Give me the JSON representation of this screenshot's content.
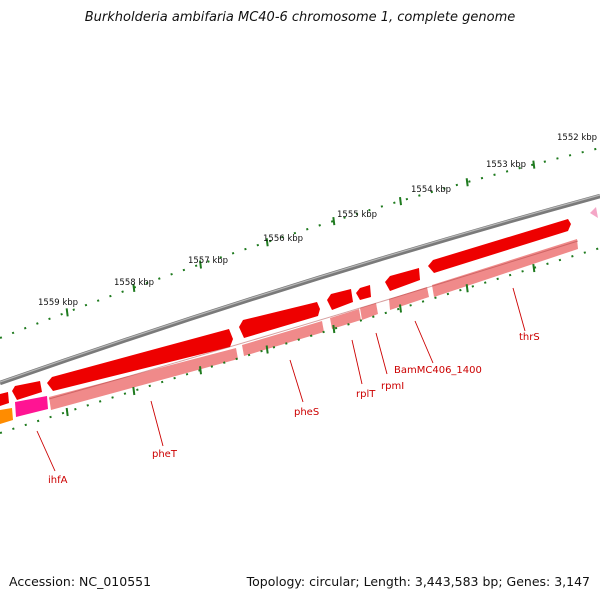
{
  "title": "Burkholderia ambifaria MC40-6 chromosome 1, complete genome",
  "accession": "Accession: NC_010551",
  "topology_info": "Topology: circular; Length: 3,443,583 bp; Genes: 3,147",
  "colors": {
    "backbone": "#7a7a7a",
    "tick": "#1e7a1e",
    "gene_strong": "#ee0000",
    "gene_light": "#f08a8a",
    "gene_magenta": "#ff1493",
    "gene_orange": "#ff8c00",
    "gene_pink": "#f4a6c6",
    "label": "#cc0000"
  },
  "kbp_labels": [
    "1552 kbp",
    "1553 kbp",
    "1554 kbp",
    "1555 kbp",
    "1556 kbp",
    "1557 kbp",
    "1558 kbp",
    "1559 kbp"
  ],
  "gene_labels": [
    "thrS",
    "BamMC406_1400",
    "rpmI",
    "rplT",
    "pheS",
    "pheT",
    "ihfA"
  ]
}
